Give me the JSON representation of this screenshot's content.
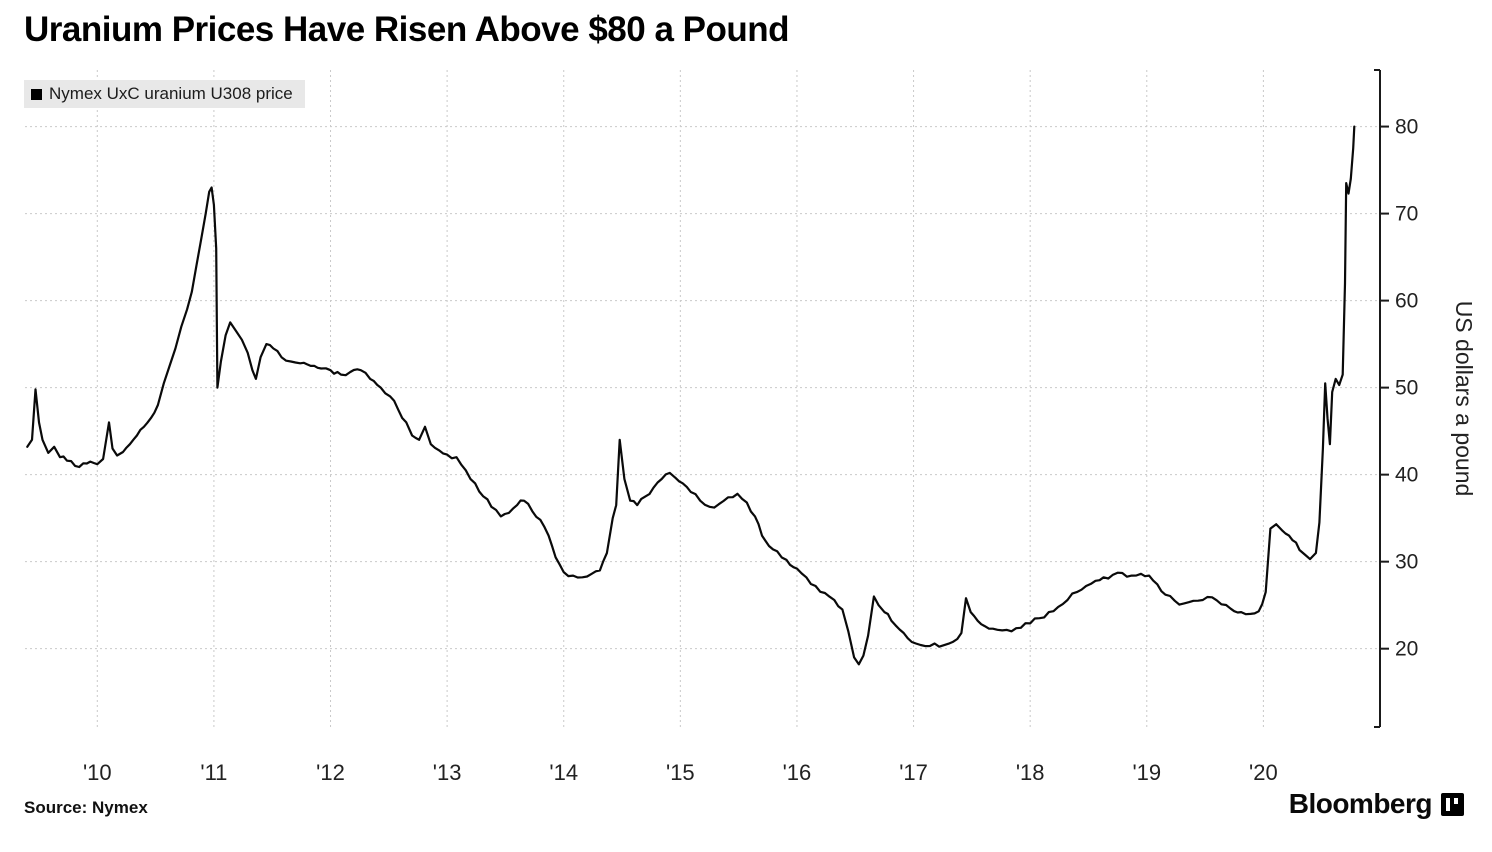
{
  "title": "Uranium Prices Have Risen Above $80 a Pound",
  "legend": {
    "label": "Nymex UxC uranium U308 price",
    "marker_color": "#000000",
    "background": "#e8e8e8"
  },
  "y_axis_title": "US dollars a pound",
  "footer": {
    "source": "Source: Nymex",
    "brand": "Bloomberg"
  },
  "colors": {
    "line": "#0a0a0a",
    "grid": "#c9c9c9",
    "axis": "#1a1a1a",
    "text": "#222222",
    "legend_bg": "#e8e8e8"
  },
  "chart_data": {
    "type": "line",
    "title": "Uranium Prices Have Risen Above $80 a Pound",
    "xlabel": "",
    "ylabel": "US dollars a pound",
    "legend_position": "top-left",
    "y_axis_side": "right",
    "grid": true,
    "xlim": [
      2009.38,
      2021.0
    ],
    "ylim": [
      11,
      86.5
    ],
    "x_ticks": [
      {
        "v": 2010,
        "label": "'10"
      },
      {
        "v": 2011,
        "label": "'11"
      },
      {
        "v": 2012,
        "label": "'12"
      },
      {
        "v": 2013,
        "label": "'13"
      },
      {
        "v": 2014,
        "label": "'14"
      },
      {
        "v": 2015,
        "label": "'15"
      },
      {
        "v": 2016,
        "label": "'16"
      },
      {
        "v": 2017,
        "label": "'17"
      },
      {
        "v": 2018,
        "label": "'18"
      },
      {
        "v": 2019,
        "label": "'19"
      },
      {
        "v": 2020,
        "label": "'20"
      }
    ],
    "y_ticks": [
      {
        "v": 20,
        "label": "20"
      },
      {
        "v": 30,
        "label": "30"
      },
      {
        "v": 40,
        "label": "40"
      },
      {
        "v": 50,
        "label": "50"
      },
      {
        "v": 60,
        "label": "60"
      },
      {
        "v": 70,
        "label": "70"
      },
      {
        "v": 80,
        "label": "80"
      }
    ],
    "series": [
      {
        "name": "Nymex UxC uranium U308 price",
        "points": [
          [
            2009.4,
            43.2
          ],
          [
            2009.44,
            44.0
          ],
          [
            2009.47,
            49.8
          ],
          [
            2009.5,
            46.0
          ],
          [
            2009.53,
            44.0
          ],
          [
            2009.58,
            42.5
          ],
          [
            2009.63,
            43.2
          ],
          [
            2009.68,
            42.0
          ],
          [
            2009.74,
            41.6
          ],
          [
            2009.81,
            41.0
          ],
          [
            2009.88,
            41.3
          ],
          [
            2009.94,
            41.5
          ],
          [
            2010.0,
            41.2
          ],
          [
            2010.05,
            41.8
          ],
          [
            2010.1,
            46.0
          ],
          [
            2010.13,
            43.0
          ],
          [
            2010.17,
            42.2
          ],
          [
            2010.22,
            42.6
          ],
          [
            2010.28,
            43.5
          ],
          [
            2010.34,
            44.5
          ],
          [
            2010.4,
            45.5
          ],
          [
            2010.46,
            46.5
          ],
          [
            2010.52,
            48.0
          ],
          [
            2010.57,
            50.5
          ],
          [
            2010.62,
            52.5
          ],
          [
            2010.67,
            54.5
          ],
          [
            2010.72,
            57.0
          ],
          [
            2010.77,
            59.0
          ],
          [
            2010.81,
            61.0
          ],
          [
            2010.85,
            64.0
          ],
          [
            2010.89,
            67.0
          ],
          [
            2010.93,
            70.0
          ],
          [
            2010.96,
            72.5
          ],
          [
            2010.98,
            73.0
          ],
          [
            2011.0,
            71.0
          ],
          [
            2011.02,
            66.0
          ],
          [
            2011.03,
            50.0
          ],
          [
            2011.06,
            53.0
          ],
          [
            2011.1,
            56.0
          ],
          [
            2011.14,
            57.5
          ],
          [
            2011.19,
            56.5
          ],
          [
            2011.24,
            55.5
          ],
          [
            2011.29,
            54.0
          ],
          [
            2011.33,
            52.0
          ],
          [
            2011.36,
            51.0
          ],
          [
            2011.4,
            53.5
          ],
          [
            2011.45,
            55.0
          ],
          [
            2011.51,
            54.5
          ],
          [
            2011.58,
            53.5
          ],
          [
            2011.66,
            53.0
          ],
          [
            2011.74,
            52.8
          ],
          [
            2011.83,
            52.5
          ],
          [
            2011.92,
            52.2
          ],
          [
            2012.0,
            52.0
          ],
          [
            2012.09,
            51.5
          ],
          [
            2012.17,
            51.8
          ],
          [
            2012.26,
            52.0
          ],
          [
            2012.34,
            51.0
          ],
          [
            2012.43,
            50.0
          ],
          [
            2012.51,
            49.0
          ],
          [
            2012.58,
            47.5
          ],
          [
            2012.65,
            46.0
          ],
          [
            2012.7,
            44.5
          ],
          [
            2012.76,
            44.0
          ],
          [
            2012.81,
            45.5
          ],
          [
            2012.86,
            43.5
          ],
          [
            2012.93,
            42.8
          ],
          [
            2013.0,
            42.3
          ],
          [
            2013.08,
            42.0
          ],
          [
            2013.16,
            40.5
          ],
          [
            2013.24,
            39.0
          ],
          [
            2013.31,
            37.5
          ],
          [
            2013.38,
            36.3
          ],
          [
            2013.46,
            35.2
          ],
          [
            2013.53,
            35.6
          ],
          [
            2013.6,
            36.5
          ],
          [
            2013.66,
            37.0
          ],
          [
            2013.73,
            35.8
          ],
          [
            2013.8,
            34.8
          ],
          [
            2013.87,
            33.0
          ],
          [
            2013.93,
            30.5
          ],
          [
            2014.0,
            28.8
          ],
          [
            2014.08,
            28.4
          ],
          [
            2014.16,
            28.2
          ],
          [
            2014.24,
            28.6
          ],
          [
            2014.31,
            29.0
          ],
          [
            2014.37,
            31.0
          ],
          [
            2014.42,
            35.0
          ],
          [
            2014.45,
            36.5
          ],
          [
            2014.48,
            44.0
          ],
          [
            2014.52,
            39.5
          ],
          [
            2014.57,
            37.0
          ],
          [
            2014.63,
            36.5
          ],
          [
            2014.7,
            37.5
          ],
          [
            2014.77,
            38.5
          ],
          [
            2014.84,
            39.5
          ],
          [
            2014.91,
            40.2
          ],
          [
            2014.96,
            39.6
          ],
          [
            2015.02,
            39.0
          ],
          [
            2015.09,
            38.0
          ],
          [
            2015.17,
            37.0
          ],
          [
            2015.25,
            36.3
          ],
          [
            2015.33,
            36.6
          ],
          [
            2015.41,
            37.4
          ],
          [
            2015.49,
            37.8
          ],
          [
            2015.57,
            36.8
          ],
          [
            2015.64,
            35.2
          ],
          [
            2015.7,
            33.0
          ],
          [
            2015.76,
            31.8
          ],
          [
            2015.83,
            31.2
          ],
          [
            2015.91,
            30.2
          ],
          [
            2016.0,
            29.2
          ],
          [
            2016.08,
            28.2
          ],
          [
            2016.16,
            27.2
          ],
          [
            2016.24,
            26.4
          ],
          [
            2016.32,
            25.6
          ],
          [
            2016.39,
            24.5
          ],
          [
            2016.44,
            22.0
          ],
          [
            2016.49,
            19.0
          ],
          [
            2016.53,
            18.2
          ],
          [
            2016.57,
            19.2
          ],
          [
            2016.61,
            21.5
          ],
          [
            2016.66,
            26.0
          ],
          [
            2016.7,
            25.0
          ],
          [
            2016.75,
            24.2
          ],
          [
            2016.81,
            23.2
          ],
          [
            2016.88,
            22.2
          ],
          [
            2016.95,
            21.2
          ],
          [
            2017.02,
            20.6
          ],
          [
            2017.1,
            20.3
          ],
          [
            2017.18,
            20.6
          ],
          [
            2017.26,
            20.4
          ],
          [
            2017.34,
            20.8
          ],
          [
            2017.41,
            21.8
          ],
          [
            2017.45,
            25.8
          ],
          [
            2017.49,
            24.2
          ],
          [
            2017.55,
            23.2
          ],
          [
            2017.61,
            22.6
          ],
          [
            2017.68,
            22.3
          ],
          [
            2017.76,
            22.1
          ],
          [
            2017.84,
            22.0
          ],
          [
            2017.92,
            22.4
          ],
          [
            2018.0,
            22.9
          ],
          [
            2018.08,
            23.5
          ],
          [
            2018.16,
            24.2
          ],
          [
            2018.24,
            24.8
          ],
          [
            2018.32,
            25.6
          ],
          [
            2018.4,
            26.5
          ],
          [
            2018.48,
            27.2
          ],
          [
            2018.56,
            27.8
          ],
          [
            2018.63,
            28.2
          ],
          [
            2018.71,
            28.5
          ],
          [
            2018.79,
            28.7
          ],
          [
            2018.87,
            28.4
          ],
          [
            2018.95,
            28.6
          ],
          [
            2019.02,
            28.4
          ],
          [
            2019.09,
            27.4
          ],
          [
            2019.16,
            26.2
          ],
          [
            2019.24,
            25.5
          ],
          [
            2019.32,
            25.2
          ],
          [
            2019.4,
            25.5
          ],
          [
            2019.48,
            25.6
          ],
          [
            2019.56,
            25.9
          ],
          [
            2019.64,
            25.1
          ],
          [
            2019.72,
            24.6
          ],
          [
            2019.81,
            24.2
          ],
          [
            2019.89,
            24.0
          ],
          [
            2019.96,
            24.3
          ],
          [
            2020.02,
            26.5
          ],
          [
            2020.06,
            33.8
          ],
          [
            2020.11,
            34.3
          ],
          [
            2020.16,
            33.6
          ],
          [
            2020.22,
            33.0
          ],
          [
            2020.28,
            32.2
          ],
          [
            2020.34,
            31.0
          ],
          [
            2020.4,
            30.3
          ],
          [
            2020.45,
            31.0
          ],
          [
            2020.48,
            34.5
          ],
          [
            2020.51,
            43.0
          ],
          [
            2020.53,
            50.5
          ],
          [
            2020.55,
            46.5
          ],
          [
            2020.57,
            43.5
          ],
          [
            2020.59,
            49.5
          ],
          [
            2020.62,
            51.0
          ],
          [
            2020.65,
            50.3
          ],
          [
            2020.68,
            51.5
          ],
          [
            2020.7,
            62.0
          ],
          [
            2020.71,
            73.5
          ],
          [
            2020.73,
            72.3
          ],
          [
            2020.75,
            74.0
          ],
          [
            2020.77,
            77.5
          ],
          [
            2020.78,
            80.0
          ]
        ]
      }
    ]
  }
}
